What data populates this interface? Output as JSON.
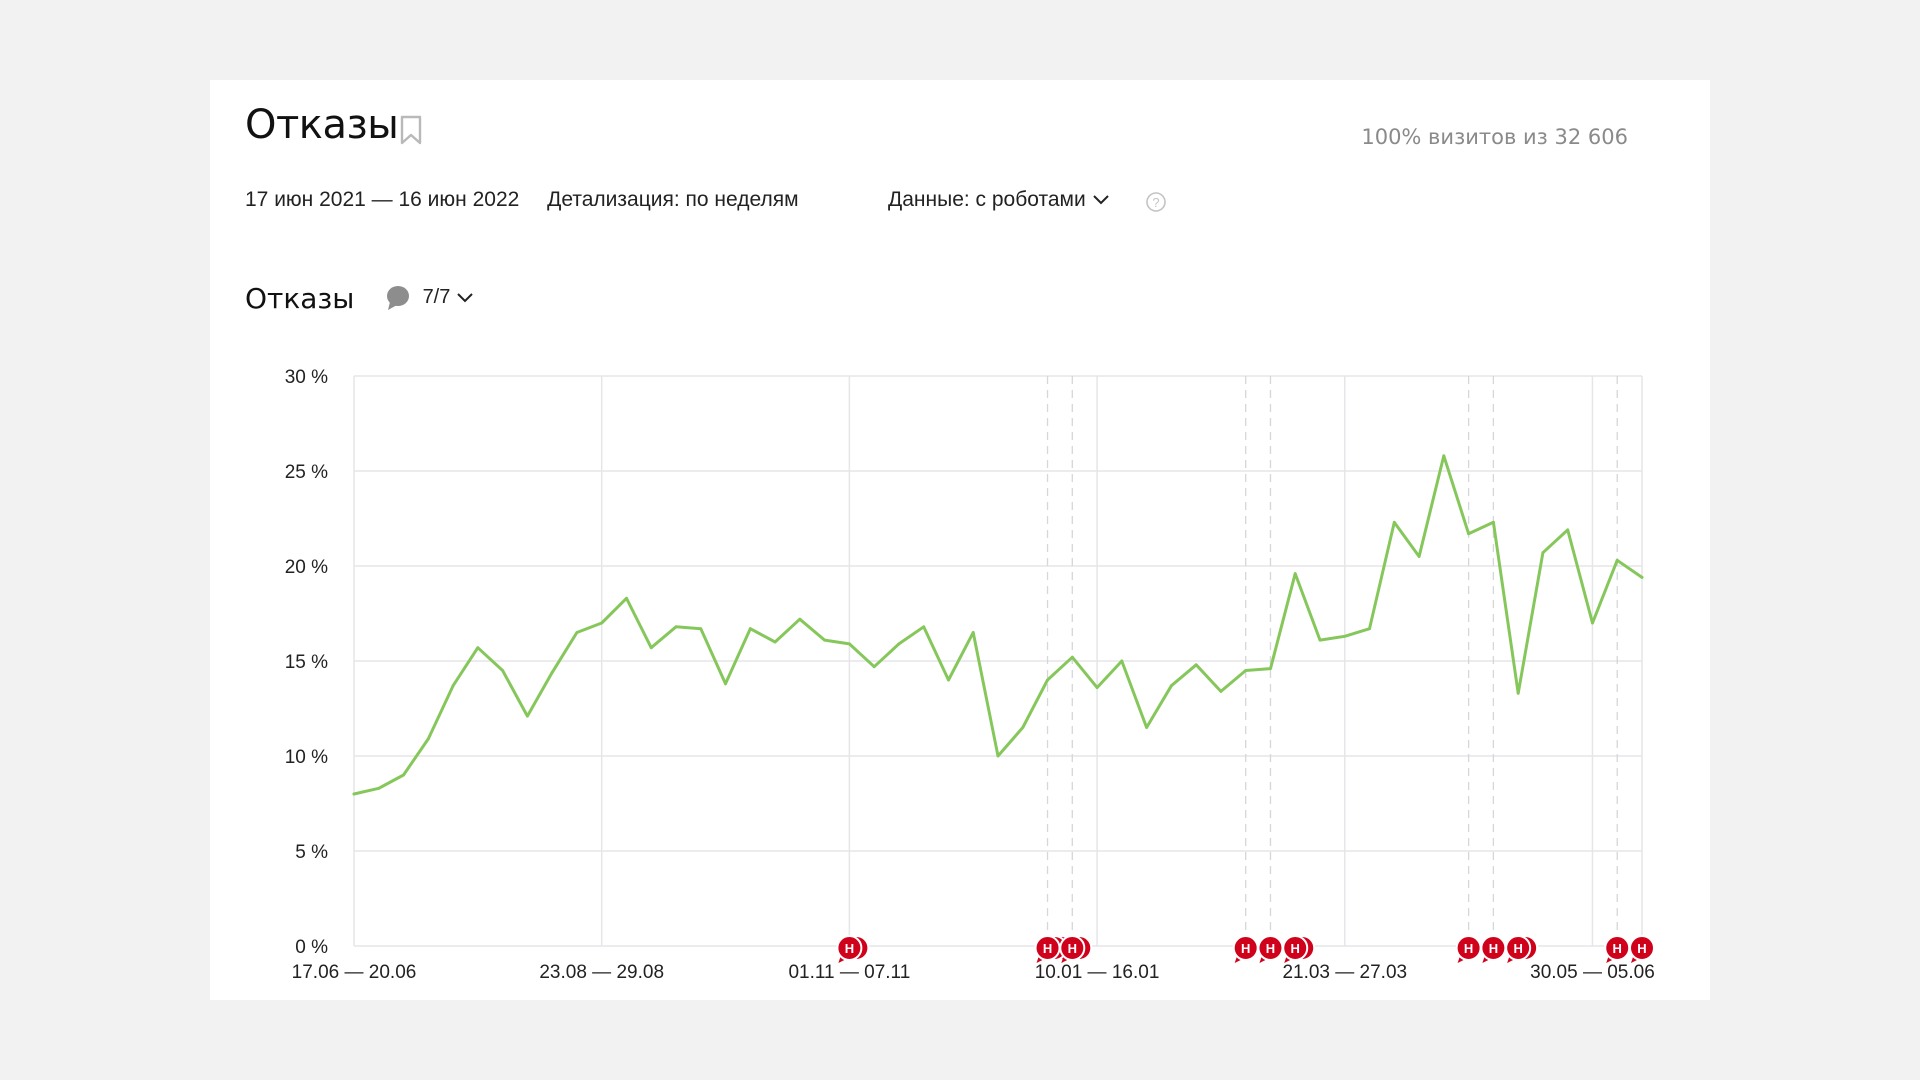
{
  "header": {
    "title": "Отказы",
    "visits_info": "100% визитов из 32 606",
    "date_range": "17 июн 2021 — 16 июн 2022",
    "detail": "Детализация: по неделям",
    "data_mode": "Данные: с роботами"
  },
  "icons": {
    "bookmark": "bookmark-icon",
    "help": "help-icon",
    "chevron": "chevron-down-icon",
    "note": "note-bubble-icon",
    "note_marker": "note-marker-icon"
  },
  "notes": {
    "label": "7/7"
  },
  "colors": {
    "line": "#86c75b",
    "marker": "#d0021b",
    "grid": "#e6e6e9"
  },
  "chart_data": {
    "type": "line",
    "title": "Отказы",
    "ylim": [
      0,
      30
    ],
    "y_ticks": [
      "30 %",
      "25 %",
      "20 %",
      "15 %",
      "10 %",
      "5 %",
      "0 %"
    ],
    "y_tick_values": [
      30,
      25,
      20,
      15,
      10,
      5,
      0
    ],
    "x_tick_labels": [
      "17.06 — 20.06",
      "23.08 — 29.08",
      "01.11 — 07.11",
      "10.01 — 16.01",
      "21.03 — 27.03",
      "30.05 — 05.06"
    ],
    "x_tick_index": [
      0,
      10,
      20,
      30,
      40,
      50
    ],
    "grid": true,
    "series": [
      {
        "values": [
          8.0,
          8.3,
          9.0,
          10.9,
          13.7,
          15.7,
          14.5,
          12.1,
          14.4,
          16.5,
          17.0,
          18.3,
          15.7,
          16.8,
          16.7,
          13.8,
          16.7,
          16.0,
          17.2,
          16.1,
          15.9,
          14.7,
          15.9,
          16.8,
          14.0,
          16.5,
          10.0,
          11.5,
          14.0,
          15.2,
          13.6,
          15.0,
          11.5,
          13.7,
          14.8,
          13.4,
          14.5,
          14.6,
          19.6,
          16.1,
          16.3,
          16.7,
          22.3,
          20.5,
          25.8,
          21.7,
          22.3,
          13.3,
          20.7,
          21.9,
          17.0,
          20.3,
          19.4
        ]
      }
    ],
    "note_markers": [
      {
        "week_index": 20,
        "count": 2
      },
      {
        "week_index": 28,
        "count": 3
      },
      {
        "week_index": 29,
        "count": 2
      },
      {
        "week_index": 36,
        "count": 1
      },
      {
        "week_index": 37,
        "count": 1
      },
      {
        "week_index": 38,
        "count": 2
      },
      {
        "week_index": 45,
        "count": 1
      },
      {
        "week_index": 46,
        "count": 1
      },
      {
        "week_index": 47,
        "count": 2
      },
      {
        "week_index": 51,
        "count": 1
      },
      {
        "week_index": 52,
        "count": 1
      }
    ],
    "marker_label": "Н",
    "note_lines": [
      28,
      29,
      36,
      37,
      45,
      46,
      51
    ]
  }
}
